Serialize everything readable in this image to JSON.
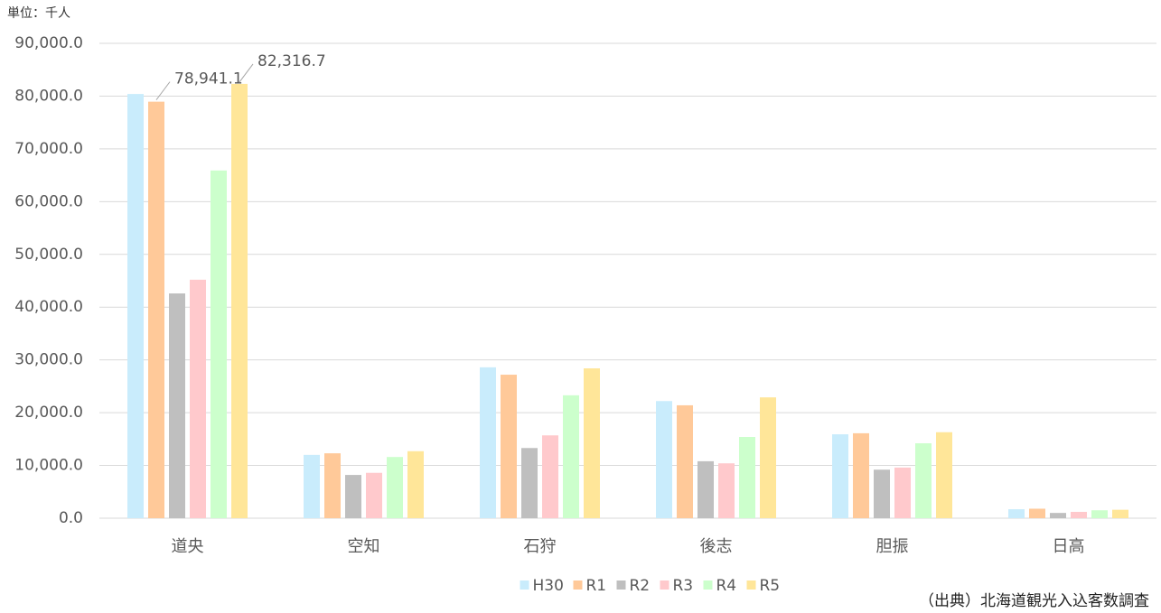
{
  "chart_data": {
    "type": "bar",
    "unit_label": "単位：千人",
    "source": "（出典）北海道観光入込客数調査",
    "categories": [
      "道央",
      "空知",
      "石狩",
      "後志",
      "胆振",
      "日高"
    ],
    "series": [
      {
        "name": "H30",
        "color": "#c9ecfc",
        "values": [
          80400,
          12000,
          28600,
          22200,
          15900,
          1700
        ]
      },
      {
        "name": "R1",
        "color": "#ffc999",
        "values": [
          78941.1,
          12300,
          27200,
          21400,
          16100,
          1800
        ],
        "value_labels": [
          "78,941.1",
          null,
          null,
          null,
          null,
          null
        ]
      },
      {
        "name": "R2",
        "color": "#bfbfbf",
        "values": [
          42600,
          8200,
          13300,
          10800,
          9200,
          1000
        ]
      },
      {
        "name": "R3",
        "color": "#ffc9cc",
        "values": [
          45200,
          8600,
          15700,
          10400,
          9600,
          1200
        ]
      },
      {
        "name": "R4",
        "color": "#ccffcc",
        "values": [
          65900,
          11600,
          23300,
          15400,
          14200,
          1500
        ]
      },
      {
        "name": "R5",
        "color": "#ffe699",
        "values": [
          82316.7,
          12700,
          28400,
          22900,
          16300,
          1600
        ],
        "value_labels": [
          "82,316.7",
          null,
          null,
          null,
          null,
          null
        ]
      }
    ],
    "ylim": [
      0,
      90000
    ],
    "yticks": [
      {
        "value": 0,
        "label": "0.0"
      },
      {
        "value": 10000,
        "label": "10,000.0"
      },
      {
        "value": 20000,
        "label": "20,000.0"
      },
      {
        "value": 30000,
        "label": "30,000.0"
      },
      {
        "value": 40000,
        "label": "40,000.0"
      },
      {
        "value": 50000,
        "label": "50,000.0"
      },
      {
        "value": 60000,
        "label": "60,000.0"
      },
      {
        "value": 70000,
        "label": "70,000.0"
      },
      {
        "value": 80000,
        "label": "80,000.0"
      },
      {
        "value": 90000,
        "label": {
          "value": 90000,
          "label": "90,000.0"
        }
      }
    ],
    "grid": true,
    "legend": "bottom"
  }
}
